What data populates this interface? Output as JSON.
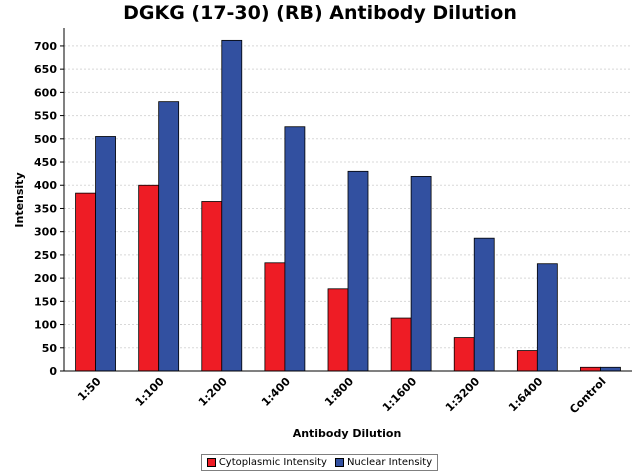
{
  "chart_data": {
    "type": "bar",
    "title": "DGKG (17-30) (RB) Antibody Dilution",
    "xlabel": "Antibody Dilution",
    "ylabel": "Intensity",
    "categories": [
      "1:50",
      "1:100",
      "1:200",
      "1:400",
      "1:800",
      "1:1600",
      "1:3200",
      "1:6400",
      "Control"
    ],
    "series": [
      {
        "name": "Cytoplasmic Intensity",
        "color": "#ee1c25",
        "values": [
          383,
          400,
          365,
          233,
          177,
          114,
          72,
          44,
          8
        ]
      },
      {
        "name": "Nuclear Intensity",
        "color": "#3250a0",
        "values": [
          505,
          580,
          712,
          526,
          430,
          419,
          286,
          231,
          8
        ]
      }
    ],
    "ylim": [
      0,
      730
    ],
    "yticks": [
      0,
      50,
      100,
      150,
      200,
      250,
      300,
      350,
      400,
      450,
      500,
      550,
      600,
      650,
      700
    ],
    "grid": true,
    "legend": "bottom"
  }
}
